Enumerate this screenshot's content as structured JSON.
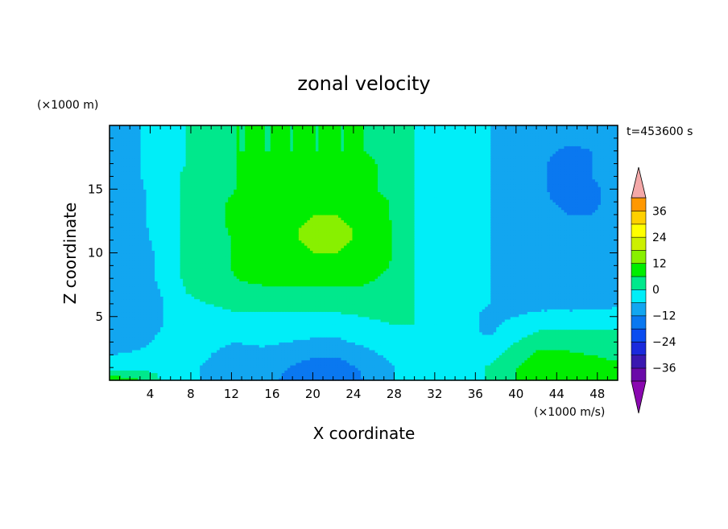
{
  "chart_data": {
    "type": "heatmap",
    "title": "zonal velocity",
    "xlabel": "X coordinate",
    "ylabel": "Z coordinate",
    "y_unit": "(×1000 m)",
    "x_unit": "(×1000 m/s)",
    "time_label": "t=453600 s",
    "xlim": [
      0,
      50
    ],
    "ylim": [
      0,
      20
    ],
    "x_ticks": [
      4,
      8,
      12,
      16,
      20,
      24,
      28,
      32,
      36,
      40,
      44,
      48
    ],
    "y_ticks": [
      5,
      10,
      15
    ],
    "colorbar": {
      "ticks": [
        36,
        24,
        12,
        0,
        -12,
        -24,
        -36
      ],
      "levels": [
        -42,
        -36,
        -30,
        -24,
        -18,
        -12,
        -6,
        0,
        6,
        12,
        18,
        24,
        30,
        36,
        42
      ],
      "colors": [
        "#6a0aa8",
        "#3a18b0",
        "#1a2adc",
        "#0a4cf0",
        "#0a78f0",
        "#12a6f0",
        "#00eef8",
        "#00e88c",
        "#00ee00",
        "#88f000",
        "#ccf000",
        "#ffff00",
        "#ffd000",
        "#ff9800",
        "#ff5800",
        "#ff1000"
      ],
      "under_color": "#8a08b0",
      "over_color": "#f4a8a8"
    },
    "columns": [
      {
        "x": 0,
        "z": [
          11,
          -3,
          -6,
          -9,
          -10,
          -10,
          -10,
          -11,
          -11,
          -10,
          -10,
          -9,
          -9,
          -9,
          -9,
          -8,
          -8,
          -8,
          -8,
          -8,
          -8
        ]
      },
      {
        "x": 2.5,
        "z": [
          8,
          -2,
          -5,
          -8,
          -9,
          -9,
          -9,
          -9,
          -10,
          -10,
          -9,
          -9,
          -8,
          -8,
          -8,
          -8,
          -7,
          -7,
          -7,
          -7,
          -7
        ]
      },
      {
        "x": 5,
        "z": [
          0,
          -1,
          -4,
          -5,
          -6,
          -7,
          -7,
          -6,
          -5,
          -5,
          -5,
          -4,
          -4,
          -3,
          -3,
          -3,
          -3,
          -3,
          -3,
          -3,
          -3
        ]
      },
      {
        "x": 7.5,
        "z": [
          -3,
          -4,
          -2,
          -2,
          -1,
          -1,
          -1,
          0,
          1,
          1,
          1,
          1,
          1,
          1,
          1,
          1,
          1,
          0,
          0,
          0,
          0
        ]
      },
      {
        "x": 10,
        "z": [
          -8,
          -8,
          -6,
          -5,
          -4,
          -3,
          0,
          2,
          3,
          3,
          2,
          2,
          3,
          3,
          3,
          3,
          4,
          4,
          4,
          4,
          4
        ]
      },
      {
        "x": 12.5,
        "z": [
          -9,
          -9,
          -8,
          -6,
          -3,
          -1,
          2,
          5,
          6,
          7,
          7,
          7,
          8,
          8,
          8,
          6,
          6,
          6,
          6,
          6,
          6
        ]
      },
      {
        "x": 15,
        "z": [
          -10,
          -10,
          -8,
          -5,
          -3,
          -1,
          2,
          5,
          7,
          8,
          10,
          10,
          10,
          10,
          10,
          8,
          9,
          10,
          6,
          6,
          6
        ]
      },
      {
        "x": 17.5,
        "z": [
          -13,
          -12,
          -9,
          -6,
          -4,
          -1,
          2,
          5,
          8,
          9,
          10,
          11,
          11,
          10,
          10,
          8,
          9,
          10,
          6,
          6,
          6
        ]
      },
      {
        "x": 20,
        "z": [
          -17,
          -15,
          -11,
          -7,
          -4,
          -1,
          2,
          5,
          8,
          10,
          12,
          13,
          13,
          12,
          10,
          8,
          9,
          10,
          6,
          6,
          6
        ]
      },
      {
        "x": 22.5,
        "z": [
          -17,
          -15,
          -11,
          -7,
          -4,
          -1,
          2,
          5,
          8,
          10,
          12,
          13,
          13,
          12,
          10,
          8,
          9,
          10,
          6,
          6,
          6
        ]
      },
      {
        "x": 25,
        "z": [
          -12,
          -11,
          -8,
          -5,
          -3,
          0,
          2,
          5,
          7,
          9,
          10,
          11,
          11,
          10,
          9,
          7,
          7,
          7,
          6,
          6,
          6
        ]
      },
      {
        "x": 27.5,
        "z": [
          -7,
          -7,
          -5,
          -3,
          -1,
          1,
          2,
          4,
          5,
          6,
          7,
          7,
          7,
          6,
          6,
          5,
          5,
          5,
          5,
          5,
          5
        ]
      },
      {
        "x": 30,
        "z": [
          -3,
          -3,
          -2,
          -1,
          0,
          0,
          0,
          0,
          0,
          0,
          0,
          0,
          0,
          0,
          0,
          0,
          0,
          0,
          0,
          0,
          0
        ]
      },
      {
        "x": 32.5,
        "z": [
          -6,
          -5,
          -4,
          -4,
          -3,
          -3,
          -2,
          -2,
          -1,
          -1,
          -1,
          -1,
          -1,
          -1,
          -1,
          -1,
          -1,
          -1,
          -1,
          -1,
          -1
        ]
      },
      {
        "x": 35,
        "z": [
          -4,
          -3,
          -4,
          -5,
          -5,
          -5,
          -5,
          -4,
          -4,
          -4,
          -4,
          -4,
          -4,
          -4,
          -4,
          -4,
          -4,
          -4,
          -4,
          -4,
          -4
        ]
      },
      {
        "x": 37.5,
        "z": [
          1,
          1,
          -2,
          -5,
          -7,
          -7,
          -6,
          -6,
          -6,
          -6,
          -6,
          -6,
          -6,
          -6,
          -6,
          -6,
          -6,
          -6,
          -6,
          -6,
          -6
        ]
      },
      {
        "x": 40,
        "z": [
          6,
          6,
          3,
          0,
          -3,
          -6,
          -8,
          -9,
          -9,
          -9,
          -9,
          -9,
          -9,
          -10,
          -10,
          -10,
          -9,
          -9,
          -9,
          -9,
          -9
        ]
      },
      {
        "x": 42.5,
        "z": [
          10,
          10,
          8,
          4,
          0,
          -4,
          -8,
          -10,
          -10,
          -10,
          -10,
          -10,
          -10,
          -10,
          -11,
          -11,
          -11,
          -11,
          -10,
          -10,
          -10
        ]
      },
      {
        "x": 45,
        "z": [
          9,
          9,
          7,
          4,
          0,
          -4,
          -8,
          -10,
          -10,
          -10,
          -10,
          -10,
          -10,
          -12,
          -13,
          -15,
          -16,
          -16,
          -13,
          -11,
          -10
        ]
      },
      {
        "x": 47.5,
        "z": [
          8,
          8,
          6,
          3,
          0,
          -4,
          -8,
          -10,
          -10,
          -10,
          -10,
          -10,
          -11,
          -12,
          -13,
          -13,
          -12,
          -12,
          -12,
          -11,
          -10
        ]
      },
      {
        "x": 50,
        "z": [
          7,
          7,
          5,
          2,
          0,
          -3,
          -7,
          -9,
          -9,
          -9,
          -9,
          -9,
          -10,
          -10,
          -10,
          -10,
          -10,
          -10,
          -10,
          -10,
          -10
        ]
      }
    ]
  }
}
